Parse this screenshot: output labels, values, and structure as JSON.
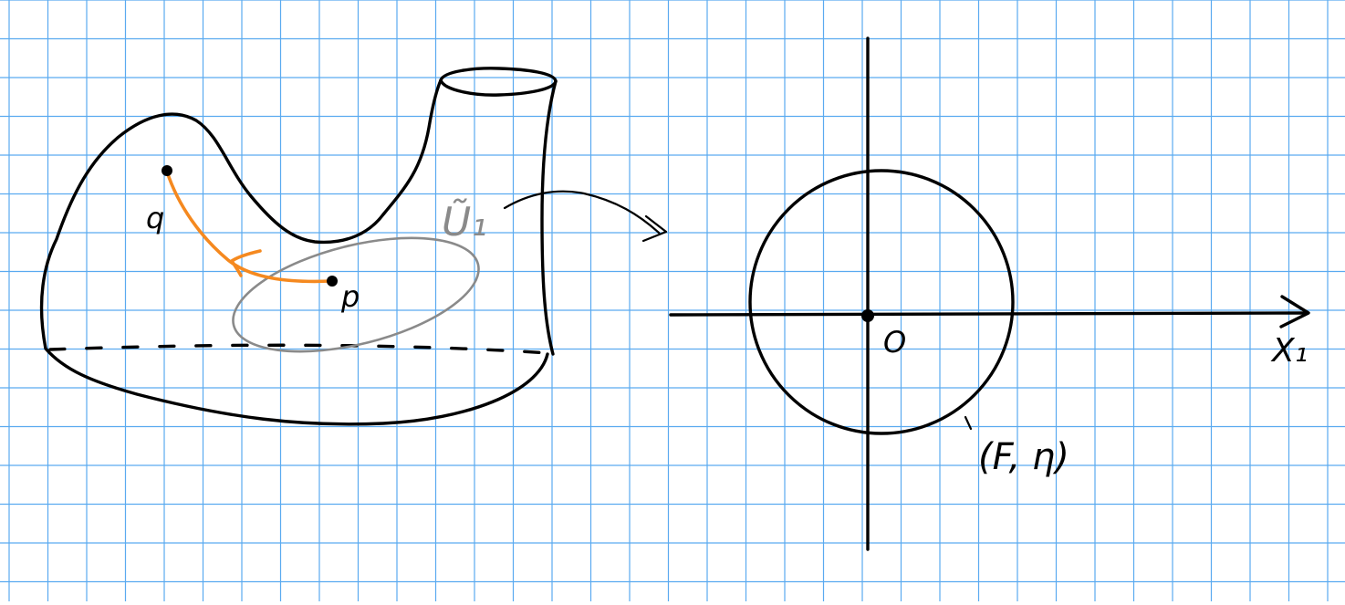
{
  "colors": {
    "grid": "#5aaaf0",
    "ink": "#000000",
    "neighborhood": "#8a8a8a",
    "path": "#f5891f"
  },
  "labels": {
    "point_q": "q",
    "point_p": "p",
    "neighborhood": "Ũ₁",
    "origin": "O",
    "axis": "X₁",
    "frame": "(F, η)"
  }
}
